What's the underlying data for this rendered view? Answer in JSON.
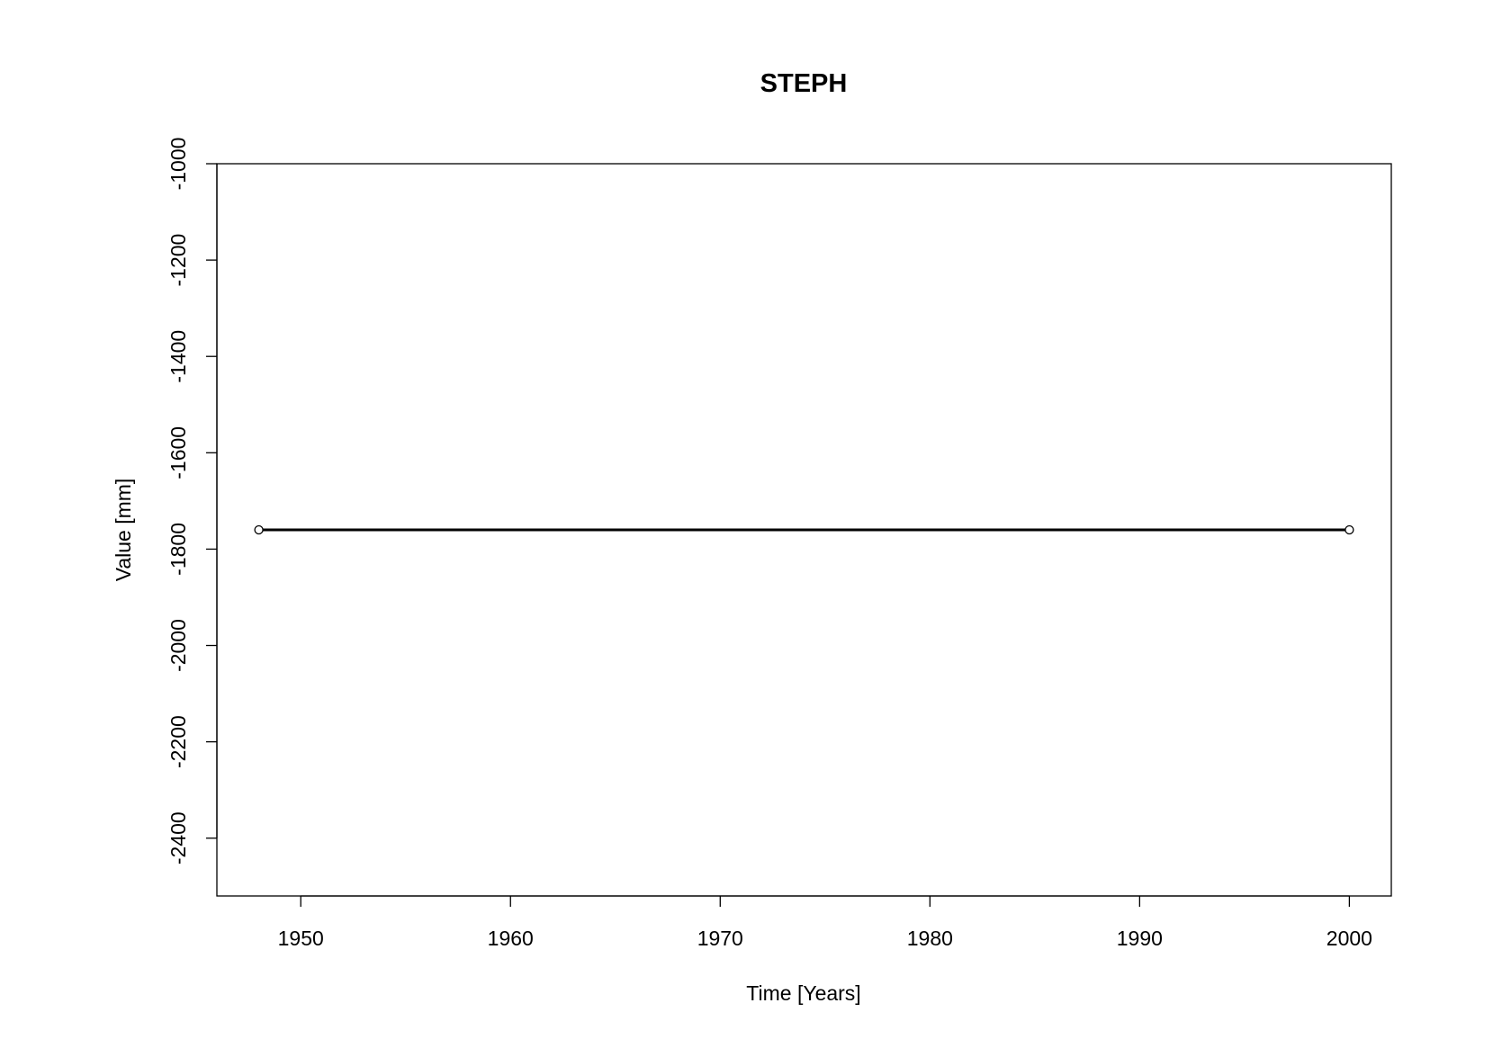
{
  "chart_data": {
    "type": "line",
    "title": "STEPH",
    "xlabel": "Time [Years]",
    "ylabel": "Value [mm]",
    "xlim": [
      1946,
      2002
    ],
    "ylim": [
      -2520,
      -1000
    ],
    "x_ticks": [
      1950,
      1960,
      1970,
      1980,
      1990,
      2000
    ],
    "y_ticks": [
      -1000,
      -1200,
      -1400,
      -1600,
      -1800,
      -2000,
      -2200,
      -2400
    ],
    "grid": false,
    "series": [
      {
        "color": "#000000",
        "marker": "open-circle",
        "points": [
          {
            "x": 1948,
            "y": -1760
          },
          {
            "x": 2000,
            "y": -1760
          }
        ]
      }
    ]
  }
}
